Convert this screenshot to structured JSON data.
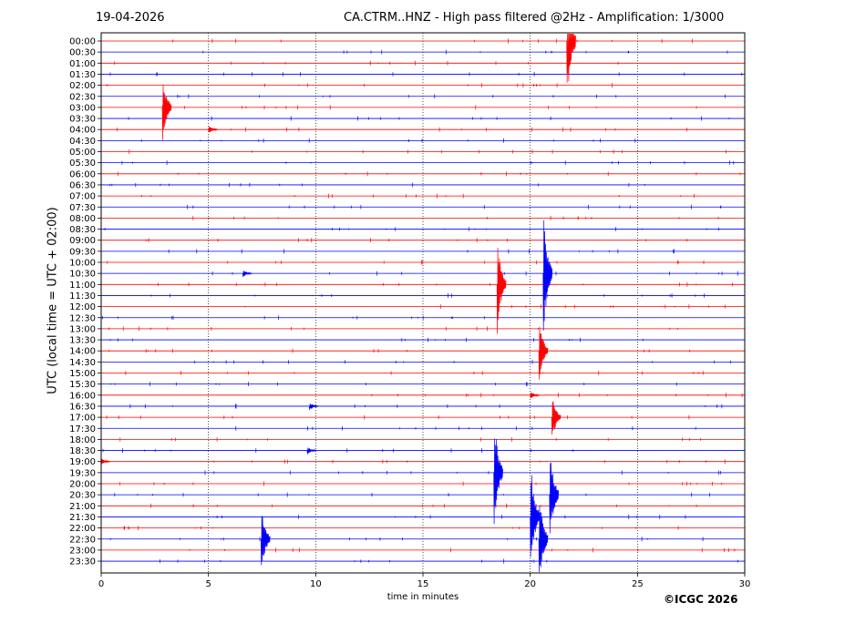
{
  "header": {
    "date": "19-04-2026",
    "title": "CA.CTRM..HNZ - High pass filtered @2Hz - Amplification: 1/3000"
  },
  "footer": {
    "copyright": "©ICGC 2026"
  },
  "chart_data": {
    "type": "line",
    "title": "CA.CTRM..HNZ - High pass filtered @2Hz - Amplification: 1/3000",
    "xlabel": "time in minutes",
    "ylabel": "UTC (local time = UTC + 02:00)",
    "xlim": [
      0,
      30
    ],
    "x_ticks": [
      "0",
      "5",
      "10",
      "15",
      "20",
      "25",
      "30"
    ],
    "grid": "vertical dotted at every 5 minutes",
    "trace_colors": [
      "#ff0000",
      "#0000ff"
    ],
    "rows": [
      "00:00",
      "00:30",
      "01:00",
      "01:30",
      "02:00",
      "02:30",
      "03:00",
      "03:30",
      "04:00",
      "04:30",
      "05:00",
      "05:30",
      "06:00",
      "06:30",
      "07:00",
      "07:30",
      "08:00",
      "08:30",
      "09:00",
      "09:30",
      "10:00",
      "10:30",
      "11:00",
      "11:30",
      "12:00",
      "12:30",
      "13:00",
      "13:30",
      "14:00",
      "14:30",
      "15:00",
      "15:30",
      "16:00",
      "16:30",
      "17:00",
      "17:30",
      "18:00",
      "18:30",
      "19:00",
      "19:30",
      "20:00",
      "20:30",
      "21:00",
      "21:30",
      "22:00",
      "22:30",
      "23:00",
      "23:30"
    ],
    "events": [
      {
        "row": 0,
        "minute": 21.7,
        "amplitude": 6.5
      },
      {
        "row": 6,
        "minute": 2.85,
        "amplitude": 3.5
      },
      {
        "row": 8,
        "minute": 5.0,
        "amplitude": 0.4
      },
      {
        "row": 22,
        "minute": 18.45,
        "amplitude": 5.0
      },
      {
        "row": 21,
        "minute": 20.6,
        "amplitude": 6.5
      },
      {
        "row": 28,
        "minute": 20.4,
        "amplitude": 3.5
      },
      {
        "row": 32,
        "minute": 20.0,
        "amplitude": 0.4
      },
      {
        "row": 34,
        "minute": 21.0,
        "amplitude": 2.5
      },
      {
        "row": 33,
        "minute": 9.7,
        "amplitude": 0.4
      },
      {
        "row": 21,
        "minute": 6.6,
        "amplitude": 0.4
      },
      {
        "row": 37,
        "minute": 9.6,
        "amplitude": 0.4
      },
      {
        "row": 38,
        "minute": 0.0,
        "amplitude": 0.3
      },
      {
        "row": 39,
        "minute": 18.3,
        "amplitude": 6.0
      },
      {
        "row": 41,
        "minute": 20.9,
        "amplitude": 5.0
      },
      {
        "row": 43,
        "minute": 20.0,
        "amplitude": 6.0
      },
      {
        "row": 45,
        "minute": 20.4,
        "amplitude": 5.0
      },
      {
        "row": 45,
        "minute": 7.45,
        "amplitude": 3.5
      }
    ]
  }
}
